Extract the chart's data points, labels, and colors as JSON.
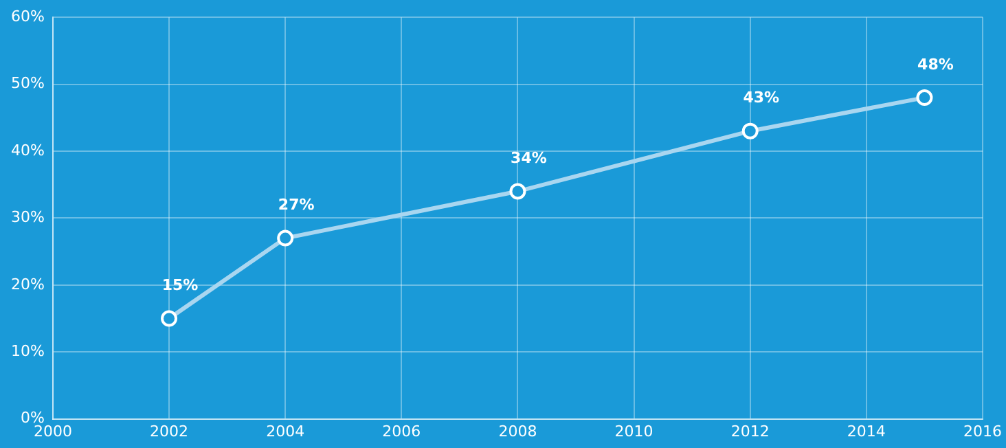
{
  "chart_data": {
    "type": "line",
    "x": [
      2002,
      2004,
      2008,
      2012,
      2015
    ],
    "series": [
      {
        "color": "#a9d6f0",
        "values": [
          15,
          27,
          34,
          43,
          48
        ],
        "value_labels": [
          "15%",
          "27%",
          "34%",
          "43%",
          "48%"
        ]
      }
    ],
    "xlim": [
      2000,
      2016
    ],
    "xticks": [
      2000,
      2002,
      2004,
      2006,
      2008,
      2010,
      2012,
      2014,
      2016
    ],
    "ylim": [
      0,
      60
    ],
    "yticks": [
      {
        "value": 0,
        "label": "0%"
      },
      {
        "value": 10,
        "label": "10%"
      },
      {
        "value": 20,
        "label": "20%"
      },
      {
        "value": 30,
        "label": "30%"
      },
      {
        "value": 40,
        "label": "40%"
      },
      {
        "value": 50,
        "label": "50%"
      },
      {
        "value": 60,
        "label": "60%"
      }
    ],
    "grid": true,
    "legend": false,
    "marker": "circle",
    "line_style": "solid"
  }
}
